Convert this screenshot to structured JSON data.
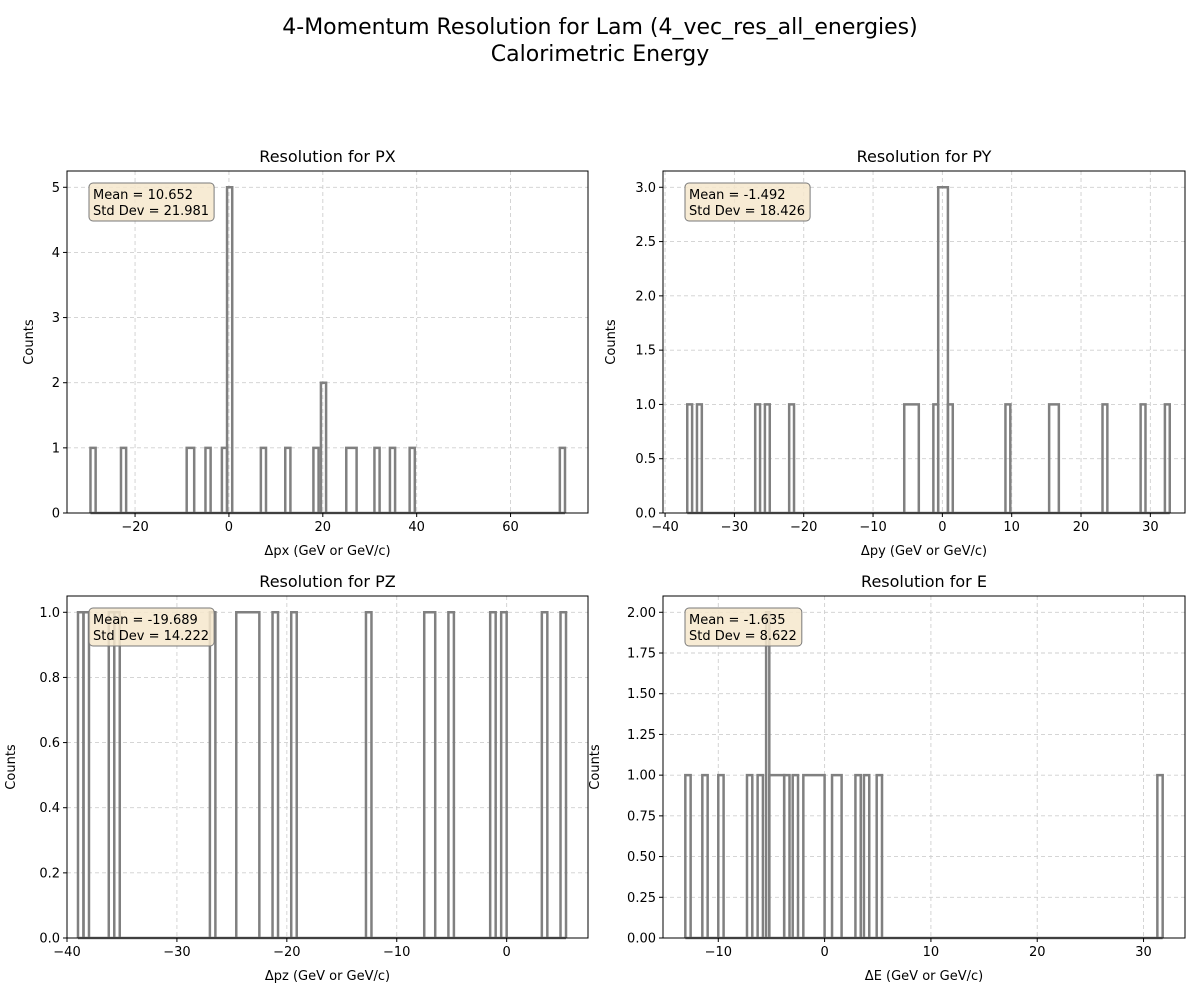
{
  "figure": {
    "title_line1": "4-Momentum Resolution for Lam (4_vec_res_all_energies)",
    "title_line2": "Calorimetric Energy"
  },
  "colors": {
    "histogram_line": "#808080",
    "stats_box_fill": "#f6e7cd",
    "stats_box_border": "#7a7a7a",
    "grid": "#cfcfcf"
  },
  "chart_data": [
    {
      "type": "histogram",
      "title": "Resolution for PX",
      "xlabel": "Δpx (GeV or GeV/c)",
      "ylabel": "Counts",
      "xlim": [
        -34.5,
        76.5
      ],
      "ylim": [
        0,
        5.25
      ],
      "xticks": [
        -20,
        0,
        20,
        40,
        60
      ],
      "xtick_labels": [
        "−20",
        "0",
        "20",
        "40",
        "60"
      ],
      "yticks": [
        0,
        1,
        2,
        3,
        4,
        5
      ],
      "ytick_labels": [
        "0",
        "1",
        "2",
        "3",
        "4",
        "5"
      ],
      "grid": true,
      "stats": {
        "mean": "Mean = 10.652",
        "std": "Std Dev = 21.981"
      },
      "bins": [
        [
          -29.5,
          -28.4,
          1
        ],
        [
          -23.0,
          -21.9,
          1
        ],
        [
          -9.0,
          -7.4,
          1
        ],
        [
          -5.0,
          -3.9,
          1
        ],
        [
          -1.5,
          -0.4,
          1
        ],
        [
          -0.4,
          0.7,
          5
        ],
        [
          6.8,
          7.9,
          1
        ],
        [
          12.0,
          13.1,
          1
        ],
        [
          18.0,
          19.1,
          1
        ],
        [
          19.6,
          20.7,
          2
        ],
        [
          25.0,
          27.2,
          1
        ],
        [
          31.0,
          32.1,
          1
        ],
        [
          34.3,
          35.4,
          1
        ],
        [
          38.5,
          39.6,
          1
        ],
        [
          70.5,
          71.6,
          1
        ]
      ]
    },
    {
      "type": "histogram",
      "title": "Resolution for PY",
      "xlabel": "Δpy (GeV or GeV/c)",
      "ylabel": "Counts",
      "xlim": [
        -40.3,
        35.0
      ],
      "ylim": [
        0,
        3.15
      ],
      "xticks": [
        -40,
        -30,
        -20,
        -10,
        0,
        10,
        20,
        30
      ],
      "xtick_labels": [
        "−40",
        "−30",
        "−20",
        "−10",
        "0",
        "10",
        "20",
        "30"
      ],
      "yticks": [
        0,
        0.5,
        1.0,
        1.5,
        2.0,
        2.5,
        3.0
      ],
      "ytick_labels": [
        "0.0",
        "0.5",
        "1.0",
        "1.5",
        "2.0",
        "2.5",
        "3.0"
      ],
      "grid": true,
      "stats": {
        "mean": "Mean = -1.492",
        "std": "Std Dev = 18.426"
      },
      "bins": [
        [
          -36.8,
          -36.1,
          1
        ],
        [
          -35.4,
          -34.7,
          1
        ],
        [
          -27.0,
          -26.3,
          1
        ],
        [
          -25.6,
          -24.9,
          1
        ],
        [
          -22.1,
          -21.4,
          1
        ],
        [
          -5.5,
          -3.4,
          1
        ],
        [
          -1.3,
          -0.6,
          1
        ],
        [
          -0.6,
          0.8,
          3
        ],
        [
          0.8,
          1.5,
          1
        ],
        [
          9.1,
          9.8,
          1
        ],
        [
          15.4,
          16.8,
          1
        ],
        [
          23.1,
          23.8,
          1
        ],
        [
          28.6,
          29.3,
          1
        ],
        [
          32.1,
          32.8,
          1
        ]
      ]
    },
    {
      "type": "histogram",
      "title": "Resolution for PZ",
      "xlabel": "Δpz (GeV or GeV/c)",
      "ylabel": "Counts",
      "xlim": [
        -40.0,
        7.4
      ],
      "ylim": [
        0,
        1.05
      ],
      "xticks": [
        -40,
        -30,
        -20,
        -10,
        0
      ],
      "xtick_labels": [
        "−40",
        "−30",
        "−20",
        "−10",
        "0"
      ],
      "yticks": [
        0,
        0.2,
        0.4,
        0.6,
        0.8,
        1.0
      ],
      "ytick_labels": [
        "0.0",
        "0.2",
        "0.4",
        "0.6",
        "0.8",
        "1.0"
      ],
      "grid": true,
      "stats": {
        "mean": "Mean = -19.689",
        "std": "Std Dev = 14.222"
      },
      "bins": [
        [
          -39.0,
          -38.5,
          1
        ],
        [
          -38.5,
          -38.0,
          1
        ],
        [
          -36.2,
          -35.7,
          1
        ],
        [
          -35.7,
          -35.2,
          1
        ],
        [
          -27.0,
          -26.5,
          1
        ],
        [
          -24.6,
          -22.5,
          1
        ],
        [
          -21.3,
          -20.8,
          1
        ],
        [
          -19.6,
          -19.1,
          1
        ],
        [
          -12.8,
          -12.3,
          1
        ],
        [
          -7.5,
          -6.5,
          1
        ],
        [
          -5.3,
          -4.8,
          1
        ],
        [
          -1.5,
          -1.0,
          1
        ],
        [
          -0.5,
          0.0,
          1
        ],
        [
          3.2,
          3.7,
          1
        ],
        [
          4.9,
          5.4,
          1
        ]
      ]
    },
    {
      "type": "histogram",
      "title": "Resolution for E",
      "xlabel": "ΔE (GeV or GeV/c)",
      "ylabel": "Counts",
      "xlim": [
        -15.2,
        33.9
      ],
      "ylim": [
        0,
        2.1
      ],
      "xticks": [
        -10,
        0,
        10,
        20,
        30
      ],
      "xtick_labels": [
        "−10",
        "0",
        "10",
        "20",
        "30"
      ],
      "yticks": [
        0,
        0.25,
        0.5,
        0.75,
        1.0,
        1.25,
        1.5,
        1.75,
        2.0
      ],
      "ytick_labels": [
        "0.00",
        "0.25",
        "0.50",
        "0.75",
        "1.00",
        "1.25",
        "1.50",
        "1.75",
        "2.00"
      ],
      "grid": true,
      "stats": {
        "mean": "Mean = -1.635",
        "std": "Std Dev = 8.622"
      },
      "bins": [
        [
          -13.1,
          -12.6,
          1
        ],
        [
          -11.5,
          -11.0,
          1
        ],
        [
          -10.0,
          -9.5,
          1
        ],
        [
          -7.3,
          -6.8,
          1
        ],
        [
          -6.3,
          -5.8,
          1
        ],
        [
          -5.5,
          -5.2,
          2
        ],
        [
          -5.2,
          -3.8,
          1
        ],
        [
          -3.8,
          -3.3,
          1
        ],
        [
          -3.0,
          -2.5,
          1
        ],
        [
          -2.0,
          0.0,
          1
        ],
        [
          0.7,
          1.6,
          1
        ],
        [
          2.9,
          3.4,
          1
        ],
        [
          3.7,
          4.2,
          1
        ],
        [
          4.9,
          5.4,
          1
        ],
        [
          31.3,
          31.8,
          1
        ]
      ]
    }
  ]
}
